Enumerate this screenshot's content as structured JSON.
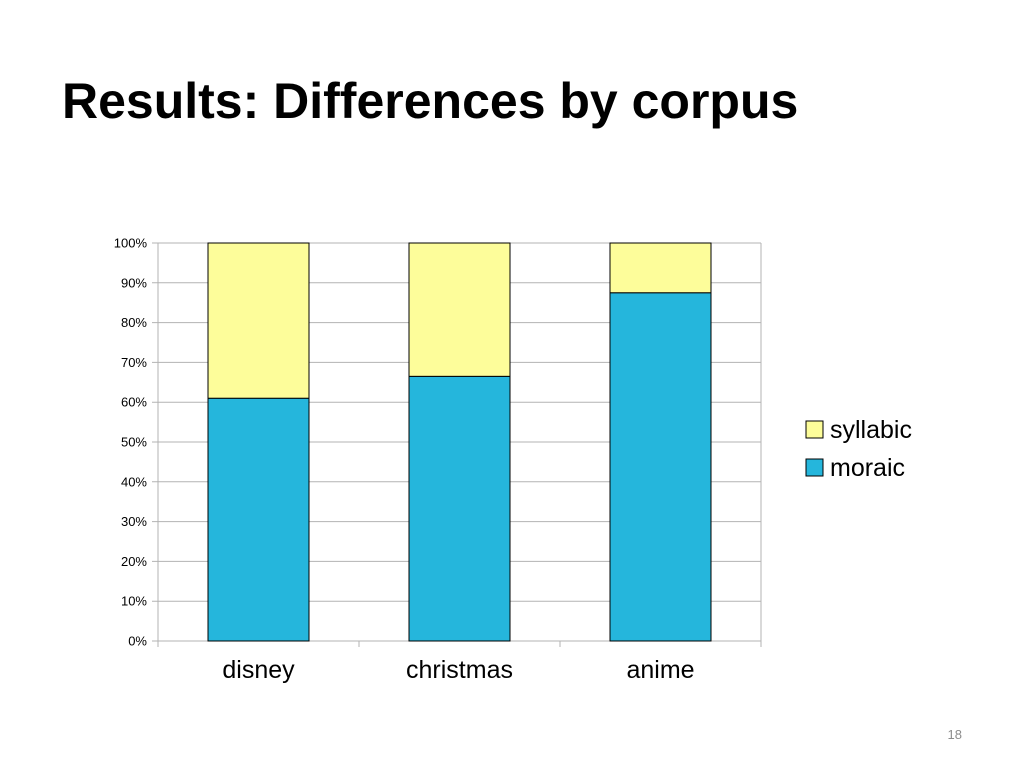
{
  "slide": {
    "title": "Results: Differences by corpus",
    "page_number": "18"
  },
  "colors": {
    "moraic": "#25b6dc",
    "syllabic": "#fdfd9a",
    "gridline": "#b3b3b3",
    "bar_outline": "#000000"
  },
  "chart_data": {
    "type": "bar",
    "stacked": true,
    "percent": true,
    "categories": [
      "disney",
      "christmas",
      "anime"
    ],
    "series": [
      {
        "name": "moraic",
        "values": [
          61,
          66.5,
          87.5
        ]
      },
      {
        "name": "syllabic",
        "values": [
          39,
          33.5,
          12.5
        ]
      }
    ],
    "yticks": [
      "0%",
      "10%",
      "20%",
      "30%",
      "40%",
      "50%",
      "60%",
      "70%",
      "80%",
      "90%",
      "100%"
    ],
    "ylim": [
      0,
      100
    ],
    "grid": true,
    "legend": {
      "position": "right",
      "entries": [
        "syllabic",
        "moraic"
      ]
    }
  }
}
